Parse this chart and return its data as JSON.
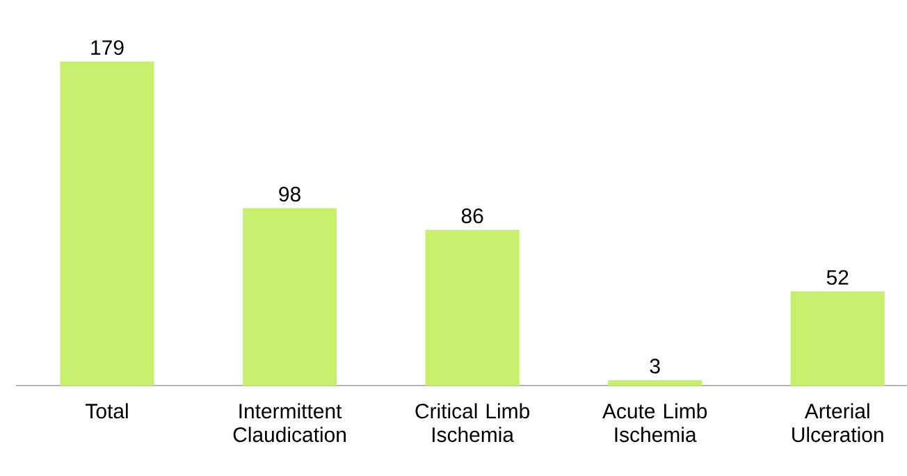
{
  "chart_data": {
    "type": "bar",
    "categories": [
      "Total",
      "Intermittent Claudication",
      "Critical Limb Ischemia",
      "Acute Limb Ischemia",
      "Arterial Ulceration"
    ],
    "values": [
      179,
      98,
      86,
      3,
      52
    ],
    "color": "#c8ef6e",
    "data_labels": true
  }
}
